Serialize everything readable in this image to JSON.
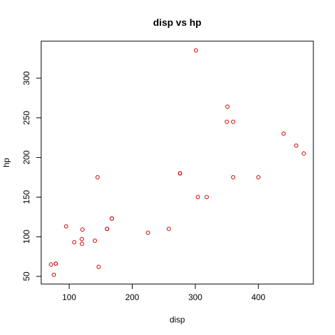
{
  "chart_data": {
    "type": "scatter",
    "title": "disp vs hp",
    "xlabel": "disp",
    "ylabel": "hp",
    "xlim": [
      55.6,
      487.2
    ],
    "ylim": [
      40.3,
      346.7
    ],
    "xticks": [
      100,
      200,
      300,
      400
    ],
    "yticks": [
      50,
      100,
      150,
      200,
      250,
      300
    ],
    "grid": false,
    "marker_color": "#cc0000",
    "points": [
      {
        "x": 160,
        "y": 110
      },
      {
        "x": 160,
        "y": 110
      },
      {
        "x": 108,
        "y": 93
      },
      {
        "x": 258,
        "y": 110
      },
      {
        "x": 360,
        "y": 175
      },
      {
        "x": 225,
        "y": 105
      },
      {
        "x": 360,
        "y": 245
      },
      {
        "x": 146.7,
        "y": 62
      },
      {
        "x": 140.8,
        "y": 95
      },
      {
        "x": 167.6,
        "y": 123
      },
      {
        "x": 167.6,
        "y": 123
      },
      {
        "x": 275.8,
        "y": 180
      },
      {
        "x": 275.8,
        "y": 180
      },
      {
        "x": 275.8,
        "y": 180
      },
      {
        "x": 472,
        "y": 205
      },
      {
        "x": 460,
        "y": 215
      },
      {
        "x": 440,
        "y": 230
      },
      {
        "x": 78.7,
        "y": 66
      },
      {
        "x": 75.7,
        "y": 52
      },
      {
        "x": 71.1,
        "y": 65
      },
      {
        "x": 120.1,
        "y": 97
      },
      {
        "x": 318,
        "y": 150
      },
      {
        "x": 304,
        "y": 150
      },
      {
        "x": 350,
        "y": 245
      },
      {
        "x": 400,
        "y": 175
      },
      {
        "x": 79,
        "y": 66
      },
      {
        "x": 120.3,
        "y": 91
      },
      {
        "x": 95.1,
        "y": 113
      },
      {
        "x": 351,
        "y": 264
      },
      {
        "x": 145,
        "y": 175
      },
      {
        "x": 301,
        "y": 335
      },
      {
        "x": 121,
        "y": 109
      }
    ]
  }
}
